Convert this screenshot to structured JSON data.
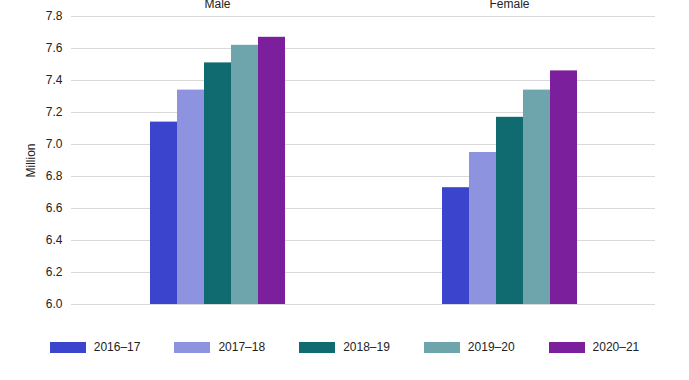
{
  "chart_data": {
    "type": "bar",
    "y_label": "Million",
    "categories": [
      "Male",
      "Female"
    ],
    "series": [
      {
        "name": "2016–17",
        "color": "#3b44cc",
        "values": [
          7.14,
          6.73
        ]
      },
      {
        "name": "2017–18",
        "color": "#8e93e0",
        "values": [
          7.34,
          6.95
        ]
      },
      {
        "name": "2018–19",
        "color": "#0f6b70",
        "values": [
          7.51,
          7.17
        ]
      },
      {
        "name": "2019–20",
        "color": "#6ea5ac",
        "values": [
          7.62,
          7.34
        ]
      },
      {
        "name": "2020–21",
        "color": "#7c1f9c",
        "values": [
          7.67,
          7.46
        ]
      }
    ],
    "ylim": [
      6.0,
      7.8
    ],
    "yticks": [
      {
        "value": 6.0,
        "label": "6.0"
      },
      {
        "value": 6.2,
        "label": "6.2"
      },
      {
        "value": 6.4,
        "label": "6.4"
      },
      {
        "value": 6.6,
        "label": "6.6"
      },
      {
        "value": 6.8,
        "label": "6.8"
      },
      {
        "value": 7.0,
        "label": "7.0"
      },
      {
        "value": 7.2,
        "label": "7.2"
      },
      {
        "value": 7.4,
        "label": "7.4"
      },
      {
        "value": 7.6,
        "label": "7.6"
      },
      {
        "value": 7.8,
        "label": "7.8"
      }
    ],
    "grid": true,
    "legend": "bottom"
  }
}
